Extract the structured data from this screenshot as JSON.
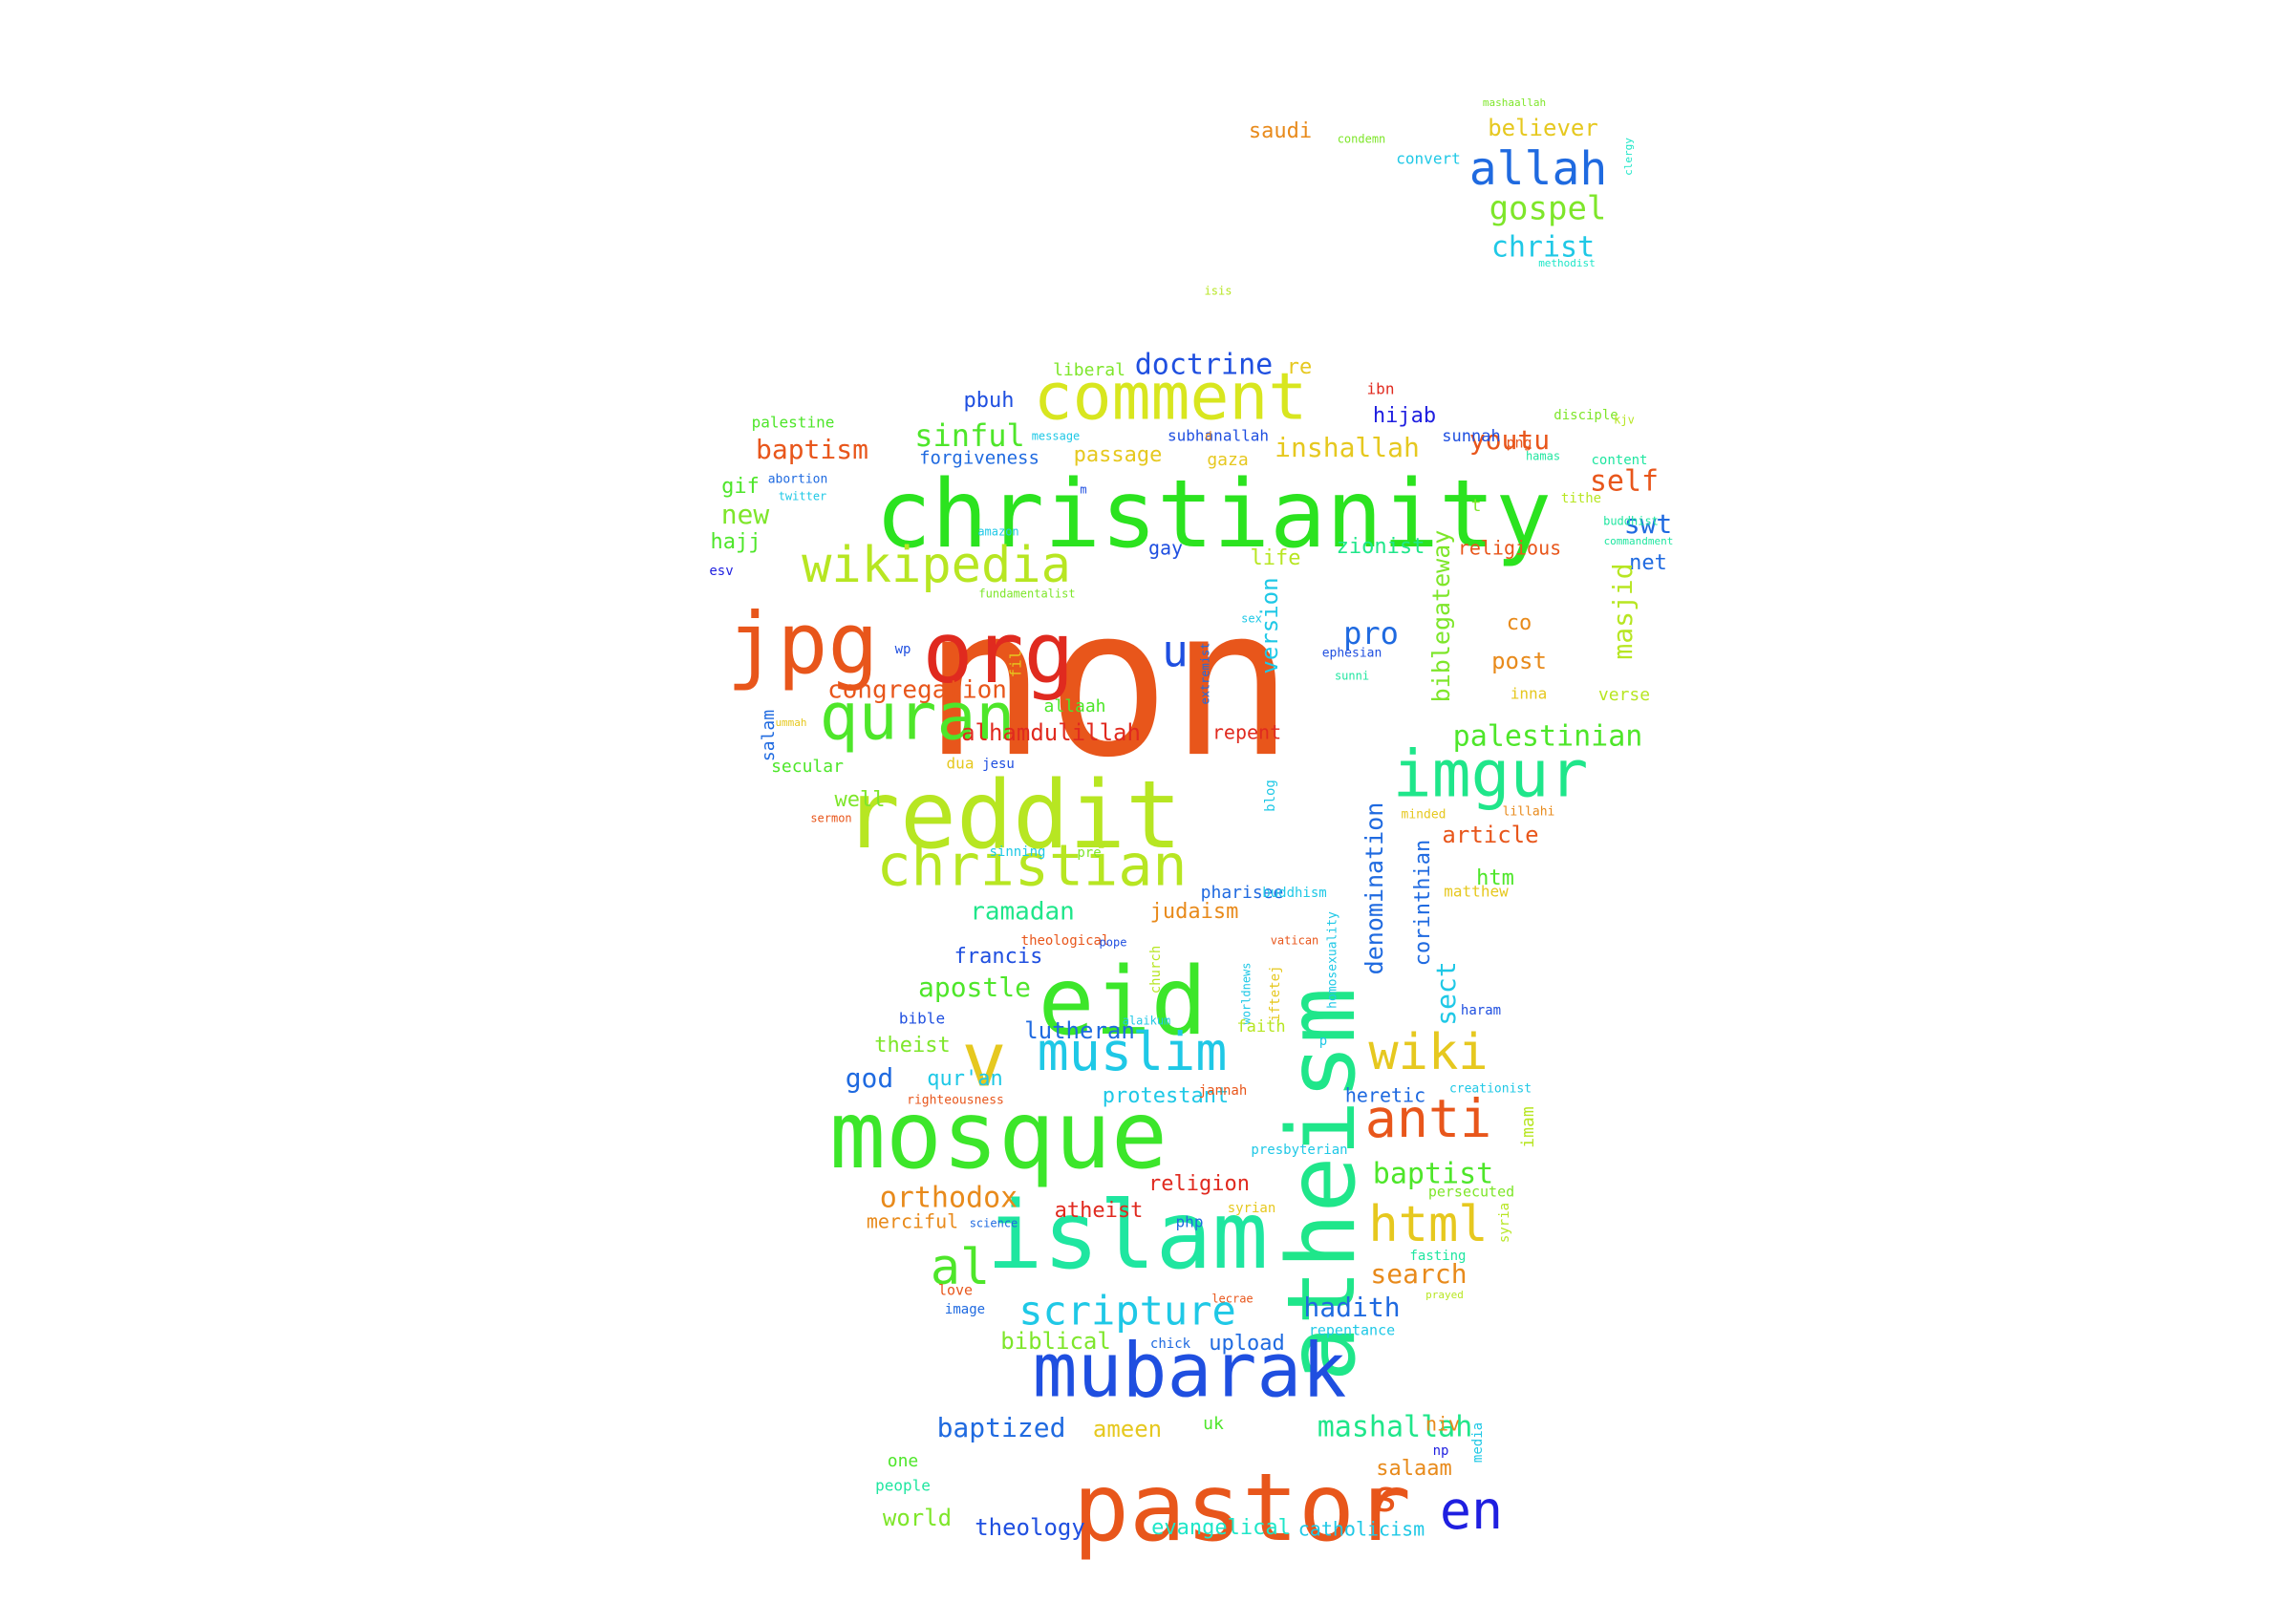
{
  "word_cloud": {
    "words": [
      {
        "text": "non",
        "color": "#e8561b"
      },
      {
        "text": "christianity",
        "color": "#2be31f"
      },
      {
        "text": "reddit",
        "color": "#b7e622"
      },
      {
        "text": "atheism",
        "color": "#1fe68a"
      },
      {
        "text": "mosque",
        "color": "#3ce62a"
      },
      {
        "text": "islam",
        "color": "#1fe6a0"
      },
      {
        "text": "eid",
        "color": "#3ce62a"
      },
      {
        "text": "pastor",
        "color": "#e8561b"
      },
      {
        "text": "mubarak",
        "color": "#1f4fe0"
      },
      {
        "text": "jpg",
        "color": "#e8561b"
      },
      {
        "text": "org",
        "color": "#e02a1f"
      },
      {
        "text": "comment",
        "color": "#d8e61f"
      },
      {
        "text": "quran",
        "color": "#4ee62a"
      },
      {
        "text": "imgur",
        "color": "#1fe68a"
      },
      {
        "text": "christian",
        "color": "#b7e622"
      },
      {
        "text": "wikipedia",
        "color": "#b7e622"
      },
      {
        "text": "muslim",
        "color": "#1fc8e6"
      },
      {
        "text": "v",
        "color": "#e6c81f"
      },
      {
        "text": "wiki",
        "color": "#e6c81f"
      },
      {
        "text": "anti",
        "color": "#e8561b"
      },
      {
        "text": "html",
        "color": "#e6c81f"
      },
      {
        "text": "scripture",
        "color": "#1fc8e6"
      },
      {
        "text": "en",
        "color": "#1f1fe0"
      },
      {
        "text": "s",
        "color": "#e8561b"
      },
      {
        "text": "al",
        "color": "#4ee62a"
      },
      {
        "text": "u",
        "color": "#1f4fe0"
      },
      {
        "text": "allah",
        "color": "#1f6ae0"
      },
      {
        "text": "gospel",
        "color": "#7ee62a"
      },
      {
        "text": "christ",
        "color": "#1fc8e6"
      },
      {
        "text": "believer",
        "color": "#e6c81f"
      },
      {
        "text": "saudi",
        "color": "#e88a1b"
      },
      {
        "text": "convert",
        "color": "#1fc8e6"
      },
      {
        "text": "condemn",
        "color": "#7ee62a"
      },
      {
        "text": "mashaallah",
        "color": "#7ee62a"
      },
      {
        "text": "clergy",
        "color": "#1fe6c8"
      },
      {
        "text": "methodist",
        "color": "#1fe6c8"
      },
      {
        "text": "isis",
        "color": "#b7e622"
      },
      {
        "text": "doctrine",
        "color": "#1f4fe0"
      },
      {
        "text": "re",
        "color": "#e6c81f"
      },
      {
        "text": "liberal",
        "color": "#7ee62a"
      },
      {
        "text": "pbuh",
        "color": "#1f4fe0"
      },
      {
        "text": "ibn",
        "color": "#e02a1f"
      },
      {
        "text": "hijab",
        "color": "#1f1fe0"
      },
      {
        "text": "palestine",
        "color": "#4ee62a"
      },
      {
        "text": "baptism",
        "color": "#e8561b"
      },
      {
        "text": "sinful",
        "color": "#4ee62a"
      },
      {
        "text": "inshallah",
        "color": "#e6c81f"
      },
      {
        "text": "youtu",
        "color": "#e8561b"
      },
      {
        "text": "self",
        "color": "#e8561b"
      },
      {
        "text": "swt",
        "color": "#1f6ae0"
      },
      {
        "text": "gif",
        "color": "#4ee62a"
      },
      {
        "text": "new",
        "color": "#7ee62a"
      },
      {
        "text": "hajj",
        "color": "#4ee62a"
      },
      {
        "text": "forgiveness",
        "color": "#1f6ae0"
      },
      {
        "text": "passage",
        "color": "#e6c81f"
      },
      {
        "text": "subhanallah",
        "color": "#1f4fe0"
      },
      {
        "text": "sunnah",
        "color": "#1f4fe0"
      },
      {
        "text": "disciple",
        "color": "#7ee62a"
      },
      {
        "text": "kjv",
        "color": "#b7e622"
      },
      {
        "text": "net",
        "color": "#1f6ae0"
      },
      {
        "text": "gay",
        "color": "#1f4fe0"
      },
      {
        "text": "life",
        "color": "#b7e622"
      },
      {
        "text": "zionist",
        "color": "#1fe68a"
      },
      {
        "text": "religious",
        "color": "#e8561b"
      },
      {
        "text": "masjid",
        "color": "#b7e622"
      },
      {
        "text": "biblegateway",
        "color": "#7ee62a"
      },
      {
        "text": "version",
        "color": "#1fc8e6"
      },
      {
        "text": "pro",
        "color": "#1f6ae0"
      },
      {
        "text": "co",
        "color": "#e88a1b"
      },
      {
        "text": "post",
        "color": "#e88a1b"
      },
      {
        "text": "verse",
        "color": "#b7e622"
      },
      {
        "text": "inna",
        "color": "#e6c81f"
      },
      {
        "text": "congregation",
        "color": "#e8561b"
      },
      {
        "text": "alhamdulillah",
        "color": "#e02a1f"
      },
      {
        "text": "repent",
        "color": "#e02a1f"
      },
      {
        "text": "allaah",
        "color": "#4ee62a"
      },
      {
        "text": "palestinian",
        "color": "#4ee62a"
      },
      {
        "text": "salam",
        "color": "#1f6ae0"
      },
      {
        "text": "secular",
        "color": "#4ee62a"
      },
      {
        "text": "dua",
        "color": "#e6c81f"
      },
      {
        "text": "jesu",
        "color": "#1f4fe0"
      },
      {
        "text": "blog",
        "color": "#1fc8e6"
      },
      {
        "text": "well",
        "color": "#7ee62a"
      },
      {
        "text": "sermon",
        "color": "#e8561b"
      },
      {
        "text": "minded",
        "color": "#e6c81f"
      },
      {
        "text": "lillahi",
        "color": "#e88a1b"
      },
      {
        "text": "article",
        "color": "#e8561b"
      },
      {
        "text": "htm",
        "color": "#4ee62a"
      },
      {
        "text": "denomination",
        "color": "#1f6ae0"
      },
      {
        "text": "corinthian",
        "color": "#1f6ae0"
      },
      {
        "text": "matthew",
        "color": "#e6c81f"
      },
      {
        "text": "pharisee",
        "color": "#1f6ae0"
      },
      {
        "text": "sinning",
        "color": "#1fc8e6"
      },
      {
        "text": "pre",
        "color": "#7ee62a"
      },
      {
        "text": "buddhism",
        "color": "#1fc8e6"
      },
      {
        "text": "homosexuality",
        "color": "#1fc8e6"
      },
      {
        "text": "ramadan",
        "color": "#1fe68a"
      },
      {
        "text": "judaism",
        "color": "#e88a1b"
      },
      {
        "text": "theological",
        "color": "#e8561b"
      },
      {
        "text": "vatican",
        "color": "#e8561b"
      },
      {
        "text": "francis",
        "color": "#1f4fe0"
      },
      {
        "text": "apostle",
        "color": "#4ee62a"
      },
      {
        "text": "church",
        "color": "#b7e622"
      },
      {
        "text": "worldnews",
        "color": "#1fc8e6"
      },
      {
        "text": "iftetej",
        "color": "#e6c81f"
      },
      {
        "text": "pope",
        "color": "#1f4fe0"
      },
      {
        "text": "sect",
        "color": "#1fc8e6"
      },
      {
        "text": "bible",
        "color": "#1f4fe0"
      },
      {
        "text": "lutheran",
        "color": "#1f6ae0"
      },
      {
        "text": "alaikum",
        "color": "#1fc8e6"
      },
      {
        "text": "faith",
        "color": "#b7e622"
      },
      {
        "text": "haram",
        "color": "#1f4fe0"
      },
      {
        "text": "theist",
        "color": "#7ee62a"
      },
      {
        "text": "god",
        "color": "#1f6ae0"
      },
      {
        "text": "qur'an",
        "color": "#1fc8e6"
      },
      {
        "text": "righteousness",
        "color": "#e8561b"
      },
      {
        "text": "protestant",
        "color": "#1fc8e6"
      },
      {
        "text": "jannah",
        "color": "#e8561b"
      },
      {
        "text": "heretic",
        "color": "#1f6ae0"
      },
      {
        "text": "creationist",
        "color": "#1fc8e6"
      },
      {
        "text": "imam",
        "color": "#b7e622"
      },
      {
        "text": "presbyterian",
        "color": "#1fc8e6"
      },
      {
        "text": "religion",
        "color": "#e02a1f"
      },
      {
        "text": "baptist",
        "color": "#4ee62a"
      },
      {
        "text": "persecuted",
        "color": "#7ee62a"
      },
      {
        "text": "orthodox",
        "color": "#e88a1b"
      },
      {
        "text": "atheist",
        "color": "#e02a1f"
      },
      {
        "text": "php",
        "color": "#1f6ae0"
      },
      {
        "text": "syrian",
        "color": "#e6c81f"
      },
      {
        "text": "syria",
        "color": "#b7e622"
      },
      {
        "text": "merciful",
        "color": "#e88a1b"
      },
      {
        "text": "science",
        "color": "#1f6ae0"
      },
      {
        "text": "search",
        "color": "#e88a1b"
      },
      {
        "text": "fasting",
        "color": "#1fe6a0"
      },
      {
        "text": "love",
        "color": "#e8561b"
      },
      {
        "text": "lecrae",
        "color": "#e8561b"
      },
      {
        "text": "prayed",
        "color": "#b7e622"
      },
      {
        "text": "image",
        "color": "#1f6ae0"
      },
      {
        "text": "hadith",
        "color": "#1f6ae0"
      },
      {
        "text": "repentance",
        "color": "#1fc8e6"
      },
      {
        "text": "biblical",
        "color": "#7ee62a"
      },
      {
        "text": "chick",
        "color": "#1f6ae0"
      },
      {
        "text": "upload",
        "color": "#1f6ae0"
      },
      {
        "text": "baptized",
        "color": "#1f6ae0"
      },
      {
        "text": "ameen",
        "color": "#e6c81f"
      },
      {
        "text": "uk",
        "color": "#4ee62a"
      },
      {
        "text": "mashallah",
        "color": "#1fe68a"
      },
      {
        "text": "niv",
        "color": "#e88a1b"
      },
      {
        "text": "media",
        "color": "#1fc8e6"
      },
      {
        "text": "np",
        "color": "#1f1fe0"
      },
      {
        "text": "one",
        "color": "#4ee62a"
      },
      {
        "text": "people",
        "color": "#1fe6a0"
      },
      {
        "text": "salaam",
        "color": "#e88a1b"
      },
      {
        "text": "world",
        "color": "#7ee62a"
      },
      {
        "text": "theology",
        "color": "#1f4fe0"
      },
      {
        "text": "evangelical",
        "color": "#1fe6c8"
      },
      {
        "text": "catholicism",
        "color": "#1fc8e6"
      },
      {
        "text": "abortion",
        "color": "#1f6ae0"
      },
      {
        "text": "twitter",
        "color": "#1fc8e6"
      },
      {
        "text": "message",
        "color": "#1fc8e6"
      },
      {
        "text": "amazon",
        "color": "#1fc8e6"
      },
      {
        "text": "fundamentalist",
        "color": "#7ee62a"
      },
      {
        "text": "wp",
        "color": "#1f4fe0"
      },
      {
        "text": "fil",
        "color": "#e6c81f"
      },
      {
        "text": "extremist",
        "color": "#1f6ae0"
      },
      {
        "text": "sex",
        "color": "#1fc8e6"
      },
      {
        "text": "ephesian",
        "color": "#1f4fe0"
      },
      {
        "text": "sunni",
        "color": "#1fe6a0"
      },
      {
        "text": "esv",
        "color": "#1f1fe0"
      },
      {
        "text": "ummah",
        "color": "#e6c81f"
      },
      {
        "text": "gaza",
        "color": "#e6c81f"
      },
      {
        "text": "hamas",
        "color": "#1fe6a0"
      },
      {
        "text": "tithe",
        "color": "#b7e622"
      },
      {
        "text": "buddhist",
        "color": "#1fe6a0"
      },
      {
        "text": "commandment",
        "color": "#1fe6a0"
      },
      {
        "text": "content",
        "color": "#1fe6a0"
      },
      {
        "text": "png",
        "color": "#e8561b"
      },
      {
        "text": "t",
        "color": "#7ee62a"
      },
      {
        "text": "d",
        "color": "#e88a1b"
      },
      {
        "text": "m",
        "color": "#1f4fe0"
      },
      {
        "text": "p",
        "color": "#1fc8e6"
      }
    ]
  }
}
